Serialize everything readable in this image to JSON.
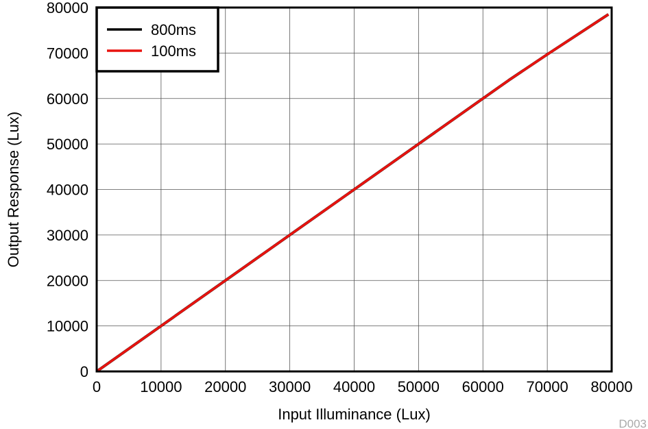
{
  "chart_data": {
    "type": "line",
    "xlabel": "Input Illuminance (Lux)",
    "ylabel": "Output Response (Lux)",
    "xlim": [
      0,
      80000
    ],
    "ylim": [
      0,
      80000
    ],
    "xticks": [
      0,
      10000,
      20000,
      30000,
      40000,
      50000,
      60000,
      70000,
      80000
    ],
    "yticks": [
      0,
      10000,
      20000,
      30000,
      40000,
      50000,
      60000,
      70000,
      80000
    ],
    "xtick_labels": [
      "0",
      "10000",
      "20000",
      "30000",
      "40000",
      "50000",
      "60000",
      "70000",
      "80000"
    ],
    "ytick_labels": [
      "0",
      "10000",
      "20000",
      "30000",
      "40000",
      "50000",
      "60000",
      "70000",
      "80000"
    ],
    "grid": true,
    "legend_position": "top-left",
    "code_label": "D003",
    "series": [
      {
        "name": "800ms",
        "color": "#000000",
        "x": [
          0,
          10000,
          20000,
          30000,
          40000,
          50000,
          60000,
          64000,
          70000,
          79500
        ],
        "y": [
          0,
          10000,
          20000,
          30000,
          40000,
          50000,
          60000,
          64000,
          69700,
          78500
        ]
      },
      {
        "name": "100ms",
        "color": "#e8130f",
        "x": [
          0,
          10000,
          20000,
          30000,
          40000,
          50000,
          60000,
          64000,
          70000,
          79500
        ],
        "y": [
          0,
          10000,
          20000,
          30000,
          40000,
          50000,
          60000,
          64000,
          69700,
          78500
        ]
      }
    ]
  }
}
